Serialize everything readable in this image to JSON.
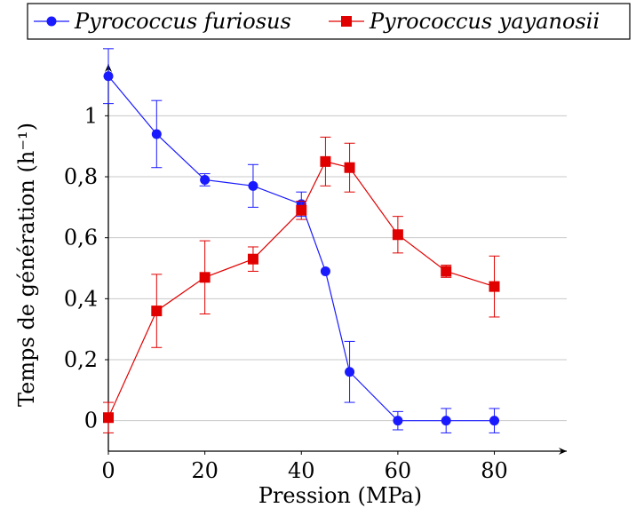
{
  "chart_data": {
    "type": "line",
    "xlabel": "Pression (MPa)",
    "ylabel": "Temps de génération (h⁻¹)",
    "xlim": [
      0,
      95
    ],
    "ylim": [
      -0.1,
      1.17
    ],
    "xticks": [
      0,
      20,
      40,
      60,
      80
    ],
    "yticks": [
      0,
      0.2,
      0.4,
      0.6,
      0.8,
      1.0
    ],
    "xtick_labels": [
      "0",
      "20",
      "40",
      "60",
      "80"
    ],
    "ytick_labels": [
      "0",
      "0,2",
      "0,4",
      "0,6",
      "0,8",
      "1"
    ],
    "grid": "horizontal",
    "legend_position": "top",
    "series": [
      {
        "name": "Pyrococcus furiosus",
        "color": "#1a1aff",
        "marker": "circle",
        "x": [
          0,
          10,
          20,
          30,
          40,
          45,
          50,
          60,
          70,
          80
        ],
        "y": [
          1.13,
          0.94,
          0.79,
          0.77,
          0.71,
          0.49,
          0.16,
          0.0,
          0.0,
          0.0
        ],
        "err": [
          0.09,
          0.11,
          0.02,
          0.07,
          0.04,
          0.0,
          0.1,
          0.03,
          0.04,
          0.04
        ]
      },
      {
        "name": "Pyrococcus yayanosii",
        "color": "#e00000",
        "marker": "square",
        "x": [
          0,
          10,
          20,
          30,
          40,
          45,
          50,
          60,
          70,
          80
        ],
        "y": [
          0.01,
          0.36,
          0.47,
          0.53,
          0.69,
          0.85,
          0.83,
          0.61,
          0.49,
          0.44
        ],
        "err": [
          0.05,
          0.12,
          0.12,
          0.04,
          0.03,
          0.08,
          0.08,
          0.06,
          0.02,
          0.1
        ]
      }
    ]
  }
}
